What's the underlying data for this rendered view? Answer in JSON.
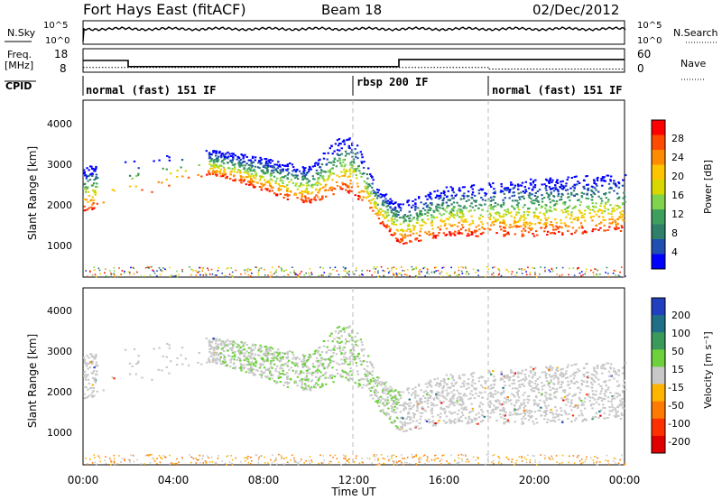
{
  "header": {
    "title": "Fort Hays East (fitACF)",
    "beam": "Beam 18",
    "date": "02/Dec/2012"
  },
  "top_panels": {
    "nsky_label": "N.Sky",
    "nsearch_label": "N.Search",
    "noise_ticks": [
      "10^5",
      "10^0"
    ],
    "freq_label": "Freq.",
    "freq_unit": "[MHz]",
    "freq_ticks": [
      "18",
      "8"
    ],
    "nave_label": "Nave",
    "nave_ticks": [
      "60",
      "0"
    ],
    "cpid_label": "CPID",
    "cpid_segments": [
      {
        "label": "normal (fast) 151 IF",
        "start_hour": 0
      },
      {
        "label": "rbsp 200 IF",
        "start_hour": 12
      },
      {
        "label": "normal (fast) 151 IF",
        "start_hour": 18
      }
    ]
  },
  "power_colorbar": {
    "label": "Power [dB]",
    "ticks": [
      "28",
      "24",
      "20",
      "16",
      "12",
      "8",
      "4"
    ],
    "colors": [
      "#ff0000",
      "#ff4a00",
      "#ff8c00",
      "#ffc400",
      "#d8d800",
      "#7fd44c",
      "#3e9e5e",
      "#2f7f6a",
      "#1f4fb0",
      "#0000ff"
    ]
  },
  "velocity_colorbar": {
    "label": "Velocity [m s⁻¹]",
    "ticks": [
      "200",
      "100",
      "50",
      "15",
      "-15",
      "-50",
      "-100",
      "-200"
    ],
    "colors": [
      "#2040c0",
      "#1f6f88",
      "#3a9a5c",
      "#6dd13c",
      "#c8c8c8",
      "#ffb400",
      "#ff7a00",
      "#ff3000",
      "#e00000"
    ]
  },
  "axes": {
    "ylabel": "Slant Range [km]",
    "yticks": [
      "4000",
      "3000",
      "2000",
      "1000"
    ],
    "xticks": [
      "00:00",
      "04:00",
      "08:00",
      "12:00",
      "16:00",
      "20:00",
      "00:00"
    ],
    "xlabel": "Time UT"
  },
  "chart_data": {
    "type": "heatmap",
    "x_unit": "hour UT",
    "xlim": [
      0,
      24
    ],
    "ylim": [
      180,
      4500
    ],
    "yticks": [
      1000,
      2000,
      3000,
      4000
    ],
    "xticks": [
      0,
      4,
      8,
      12,
      16,
      20,
      24
    ],
    "frequency_mhz": [
      {
        "start_hour": 0,
        "end_hour": 2,
        "value": 13
      },
      {
        "start_hour": 2,
        "end_hour": 14,
        "value": 10.4
      },
      {
        "start_hour": 14,
        "end_hour": 24,
        "value": 13.4
      }
    ],
    "nave": [
      {
        "start_hour": 0,
        "end_hour": 18,
        "value": 12
      },
      {
        "start_hour": 18,
        "end_hour": 24,
        "value": 8
      }
    ],
    "power_scatter_ridge": [
      {
        "hour": 0.1,
        "lower_km": 1800,
        "upper_km": 2900
      },
      {
        "hour": 5.6,
        "lower_km": 2700,
        "upper_km": 3300
      },
      {
        "hour": 7.0,
        "lower_km": 2500,
        "upper_km": 3200
      },
      {
        "hour": 8.0,
        "lower_km": 2300,
        "upper_km": 3100
      },
      {
        "hour": 9.0,
        "lower_km": 2100,
        "upper_km": 3000
      },
      {
        "hour": 10.0,
        "lower_km": 2000,
        "upper_km": 2900
      },
      {
        "hour": 11.5,
        "lower_km": 2300,
        "upper_km": 3700
      },
      {
        "hour": 12.0,
        "lower_km": 2200,
        "upper_km": 3600
      },
      {
        "hour": 13.0,
        "lower_km": 1600,
        "upper_km": 2400
      },
      {
        "hour": 14.0,
        "lower_km": 1000,
        "upper_km": 2000
      },
      {
        "hour": 16.0,
        "lower_km": 1200,
        "upper_km": 2400
      },
      {
        "hour": 20.0,
        "lower_km": 1200,
        "upper_km": 2600
      },
      {
        "hour": 23.0,
        "lower_km": 1300,
        "upper_km": 2700
      }
    ]
  }
}
